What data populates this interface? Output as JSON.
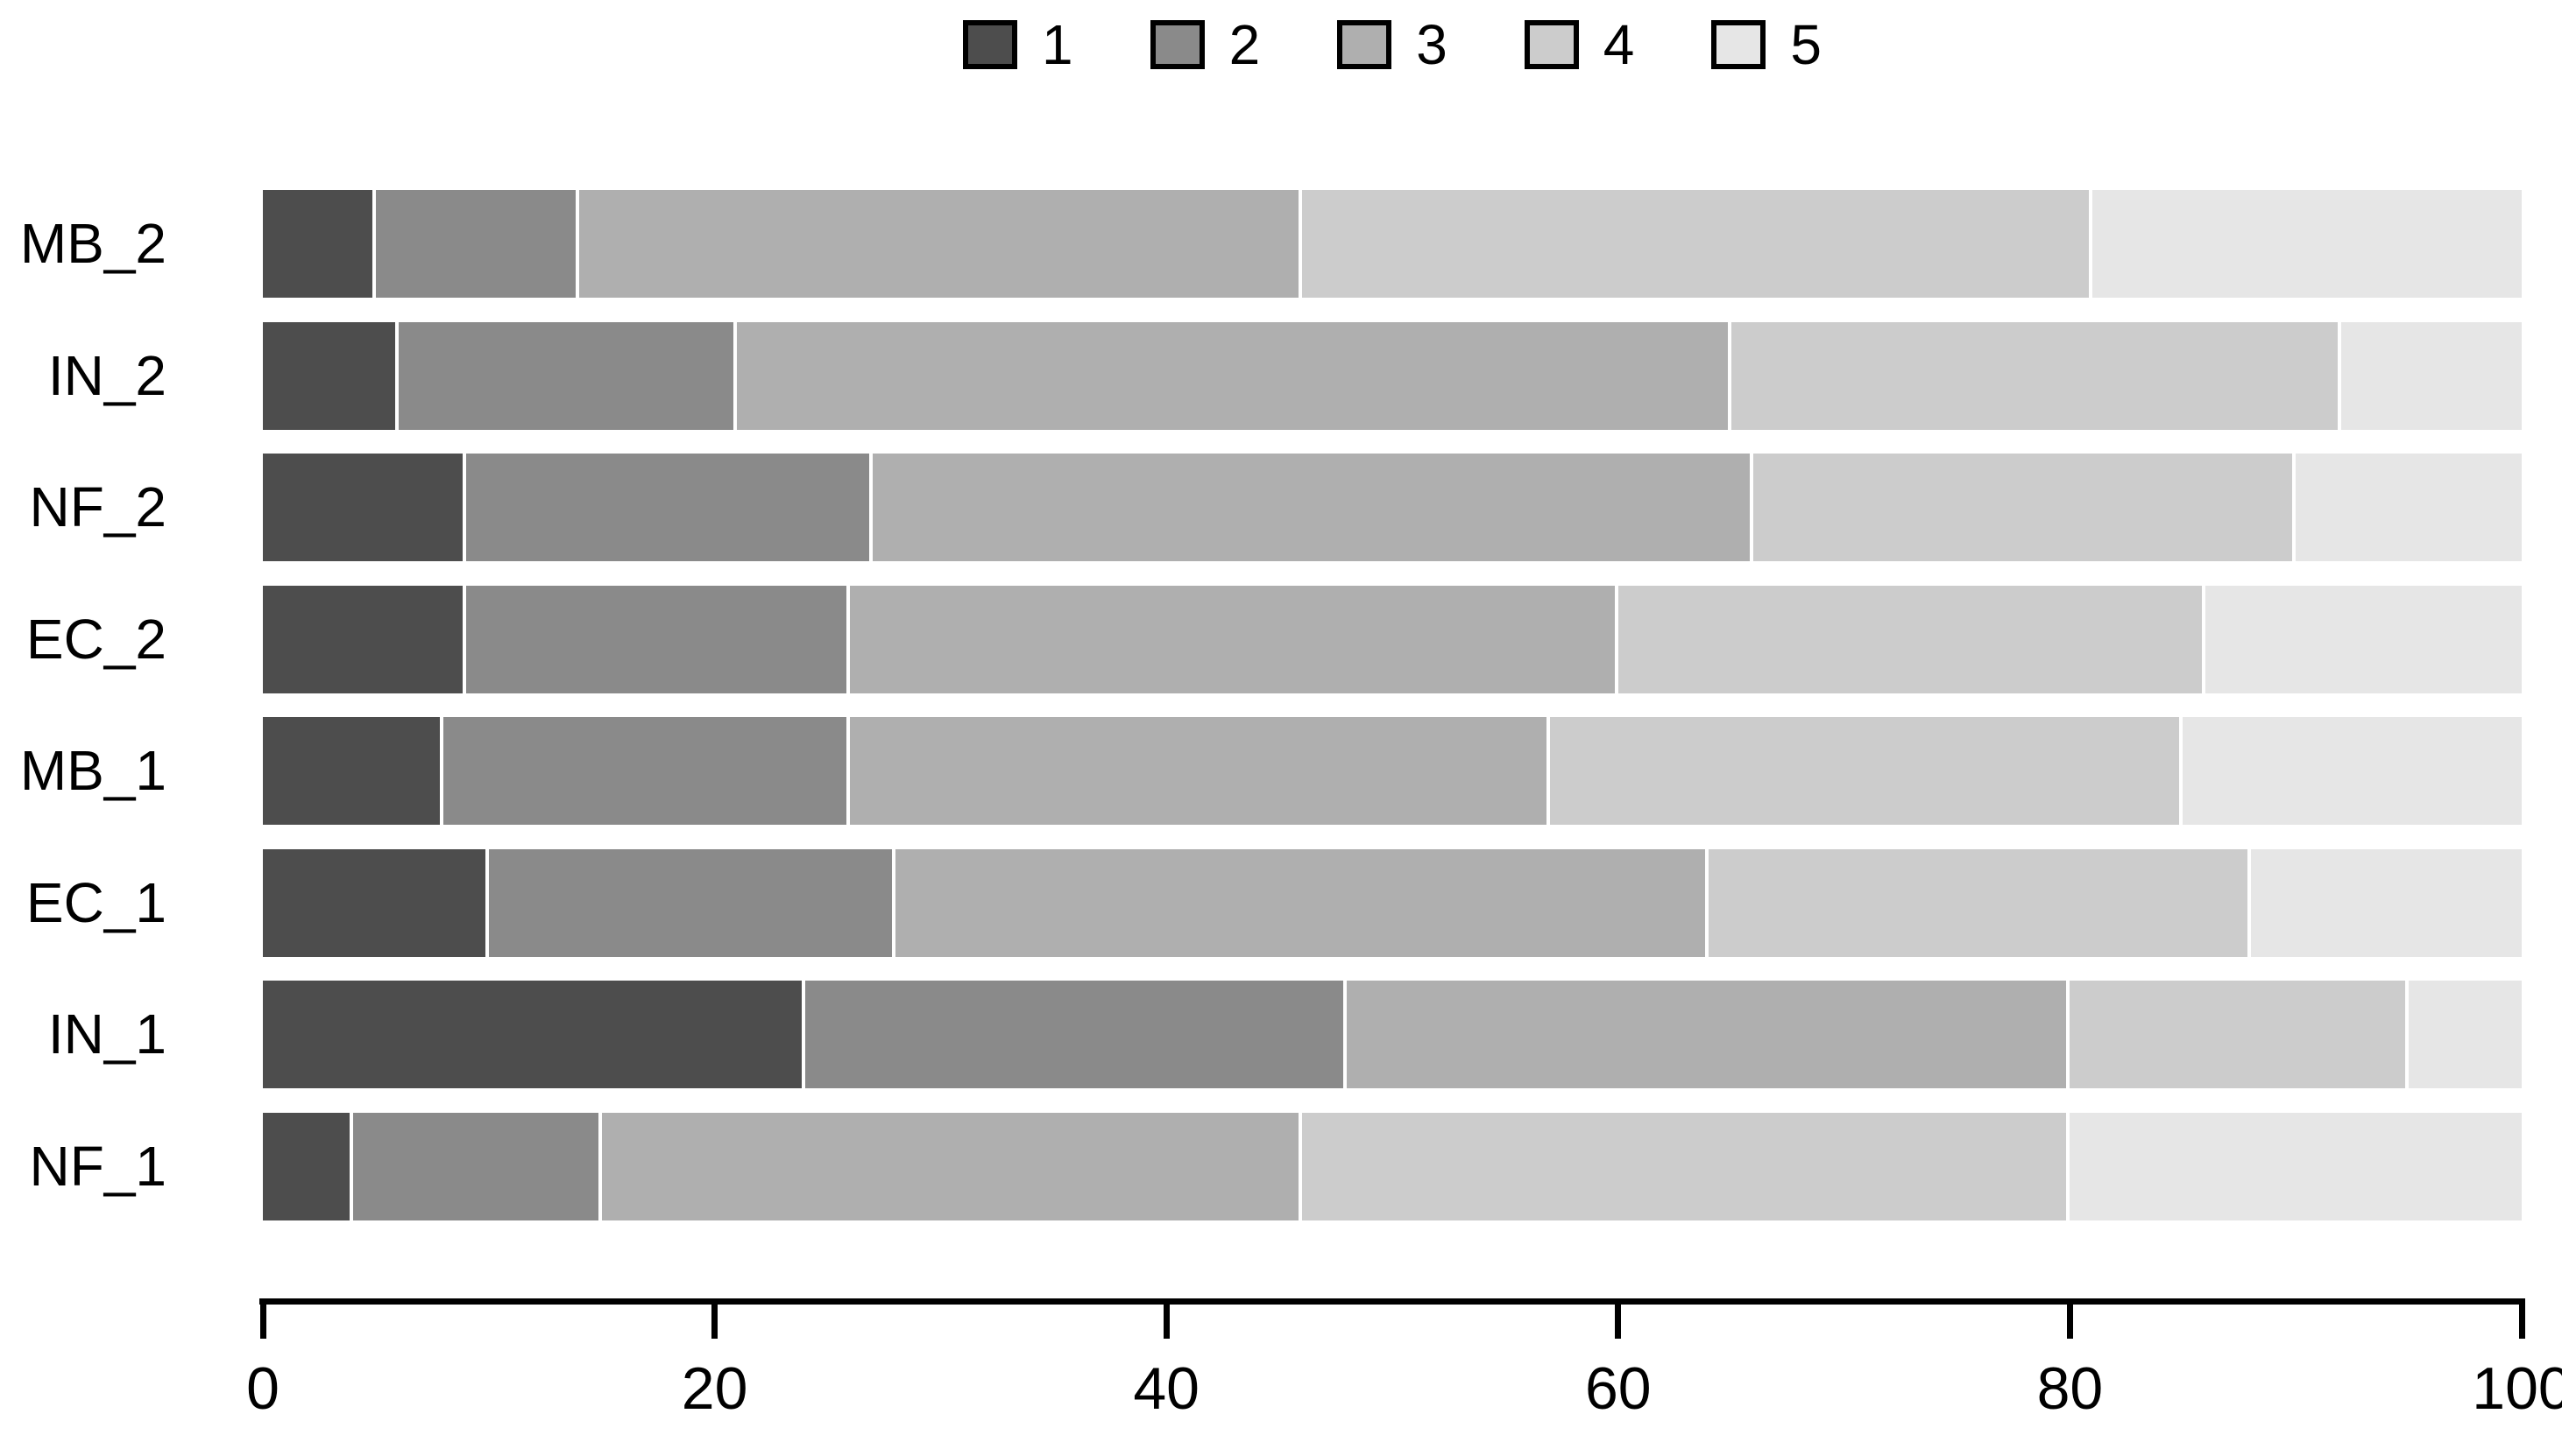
{
  "chart_data": {
    "type": "bar",
    "orientation": "horizontal",
    "stacked": true,
    "title": "",
    "xlabel": "",
    "ylabel": "",
    "xlim": [
      0,
      100
    ],
    "x_ticks": [
      0,
      20,
      40,
      60,
      80,
      100
    ],
    "grid": false,
    "legend_position": "top",
    "legend_border_color": "#000000",
    "segment_separator_color": "#ffffff",
    "background": "#ffffff",
    "categories": [
      "MB_2",
      "IN_2",
      "NF_2",
      "EC_2",
      "MB_1",
      "EC_1",
      "IN_1",
      "NF_1"
    ],
    "series": [
      {
        "name": "1",
        "color": "#4D4D4D",
        "values": [
          5,
          6,
          9,
          9,
          8,
          10,
          24,
          4
        ]
      },
      {
        "name": "2",
        "color": "#8A8A8A",
        "values": [
          9,
          15,
          18,
          17,
          18,
          18,
          24,
          11
        ]
      },
      {
        "name": "3",
        "color": "#AFAFAF",
        "values": [
          32,
          44,
          39,
          34,
          31,
          36,
          32,
          31
        ]
      },
      {
        "name": "4",
        "color": "#CCCCCC",
        "values": [
          35,
          27,
          24,
          26,
          28,
          24,
          15,
          34
        ]
      },
      {
        "name": "5",
        "color": "#E6E6E6",
        "values": [
          19,
          8,
          10,
          14,
          15,
          12,
          5,
          20
        ]
      }
    ]
  }
}
